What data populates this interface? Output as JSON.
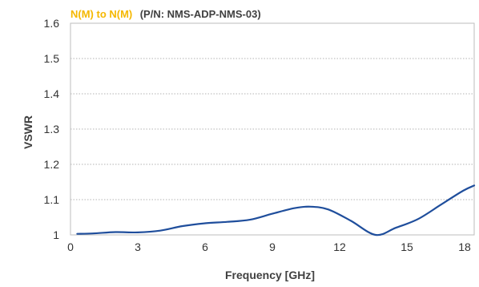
{
  "chart_data": {
    "type": "line",
    "title_part1": "N(M) to N(M)",
    "title_part2": "(P/N: NMS-ADP-NMS-03)",
    "xlabel": "Frequency [GHz]",
    "ylabel": "VSWR",
    "xlim": [
      0,
      18
    ],
    "ylim": [
      1,
      1.6
    ],
    "x_ticks": [
      "0",
      "3",
      "6",
      "9",
      "12",
      "15",
      "18"
    ],
    "y_ticks": [
      "1",
      "1.1",
      "1.2",
      "1.3",
      "1.4",
      "1.5",
      "1.6"
    ],
    "grid": "horizontal dotted",
    "colors": {
      "title_accent": "#f5b800",
      "line": "#1f4e9c",
      "text": "#404040"
    },
    "series": [
      {
        "x": [
          0.3,
          1,
          2,
          3,
          4,
          5,
          6,
          7,
          8,
          9,
          10,
          10.7,
          11.5,
          12.5,
          13.6,
          14.5,
          15.5,
          16.5,
          17.5,
          18
        ],
        "values": [
          1.003,
          1.004,
          1.008,
          1.007,
          1.012,
          1.025,
          1.033,
          1.037,
          1.043,
          1.06,
          1.076,
          1.08,
          1.072,
          1.04,
          1.0,
          1.02,
          1.045,
          1.085,
          1.125,
          1.14
        ]
      }
    ]
  }
}
